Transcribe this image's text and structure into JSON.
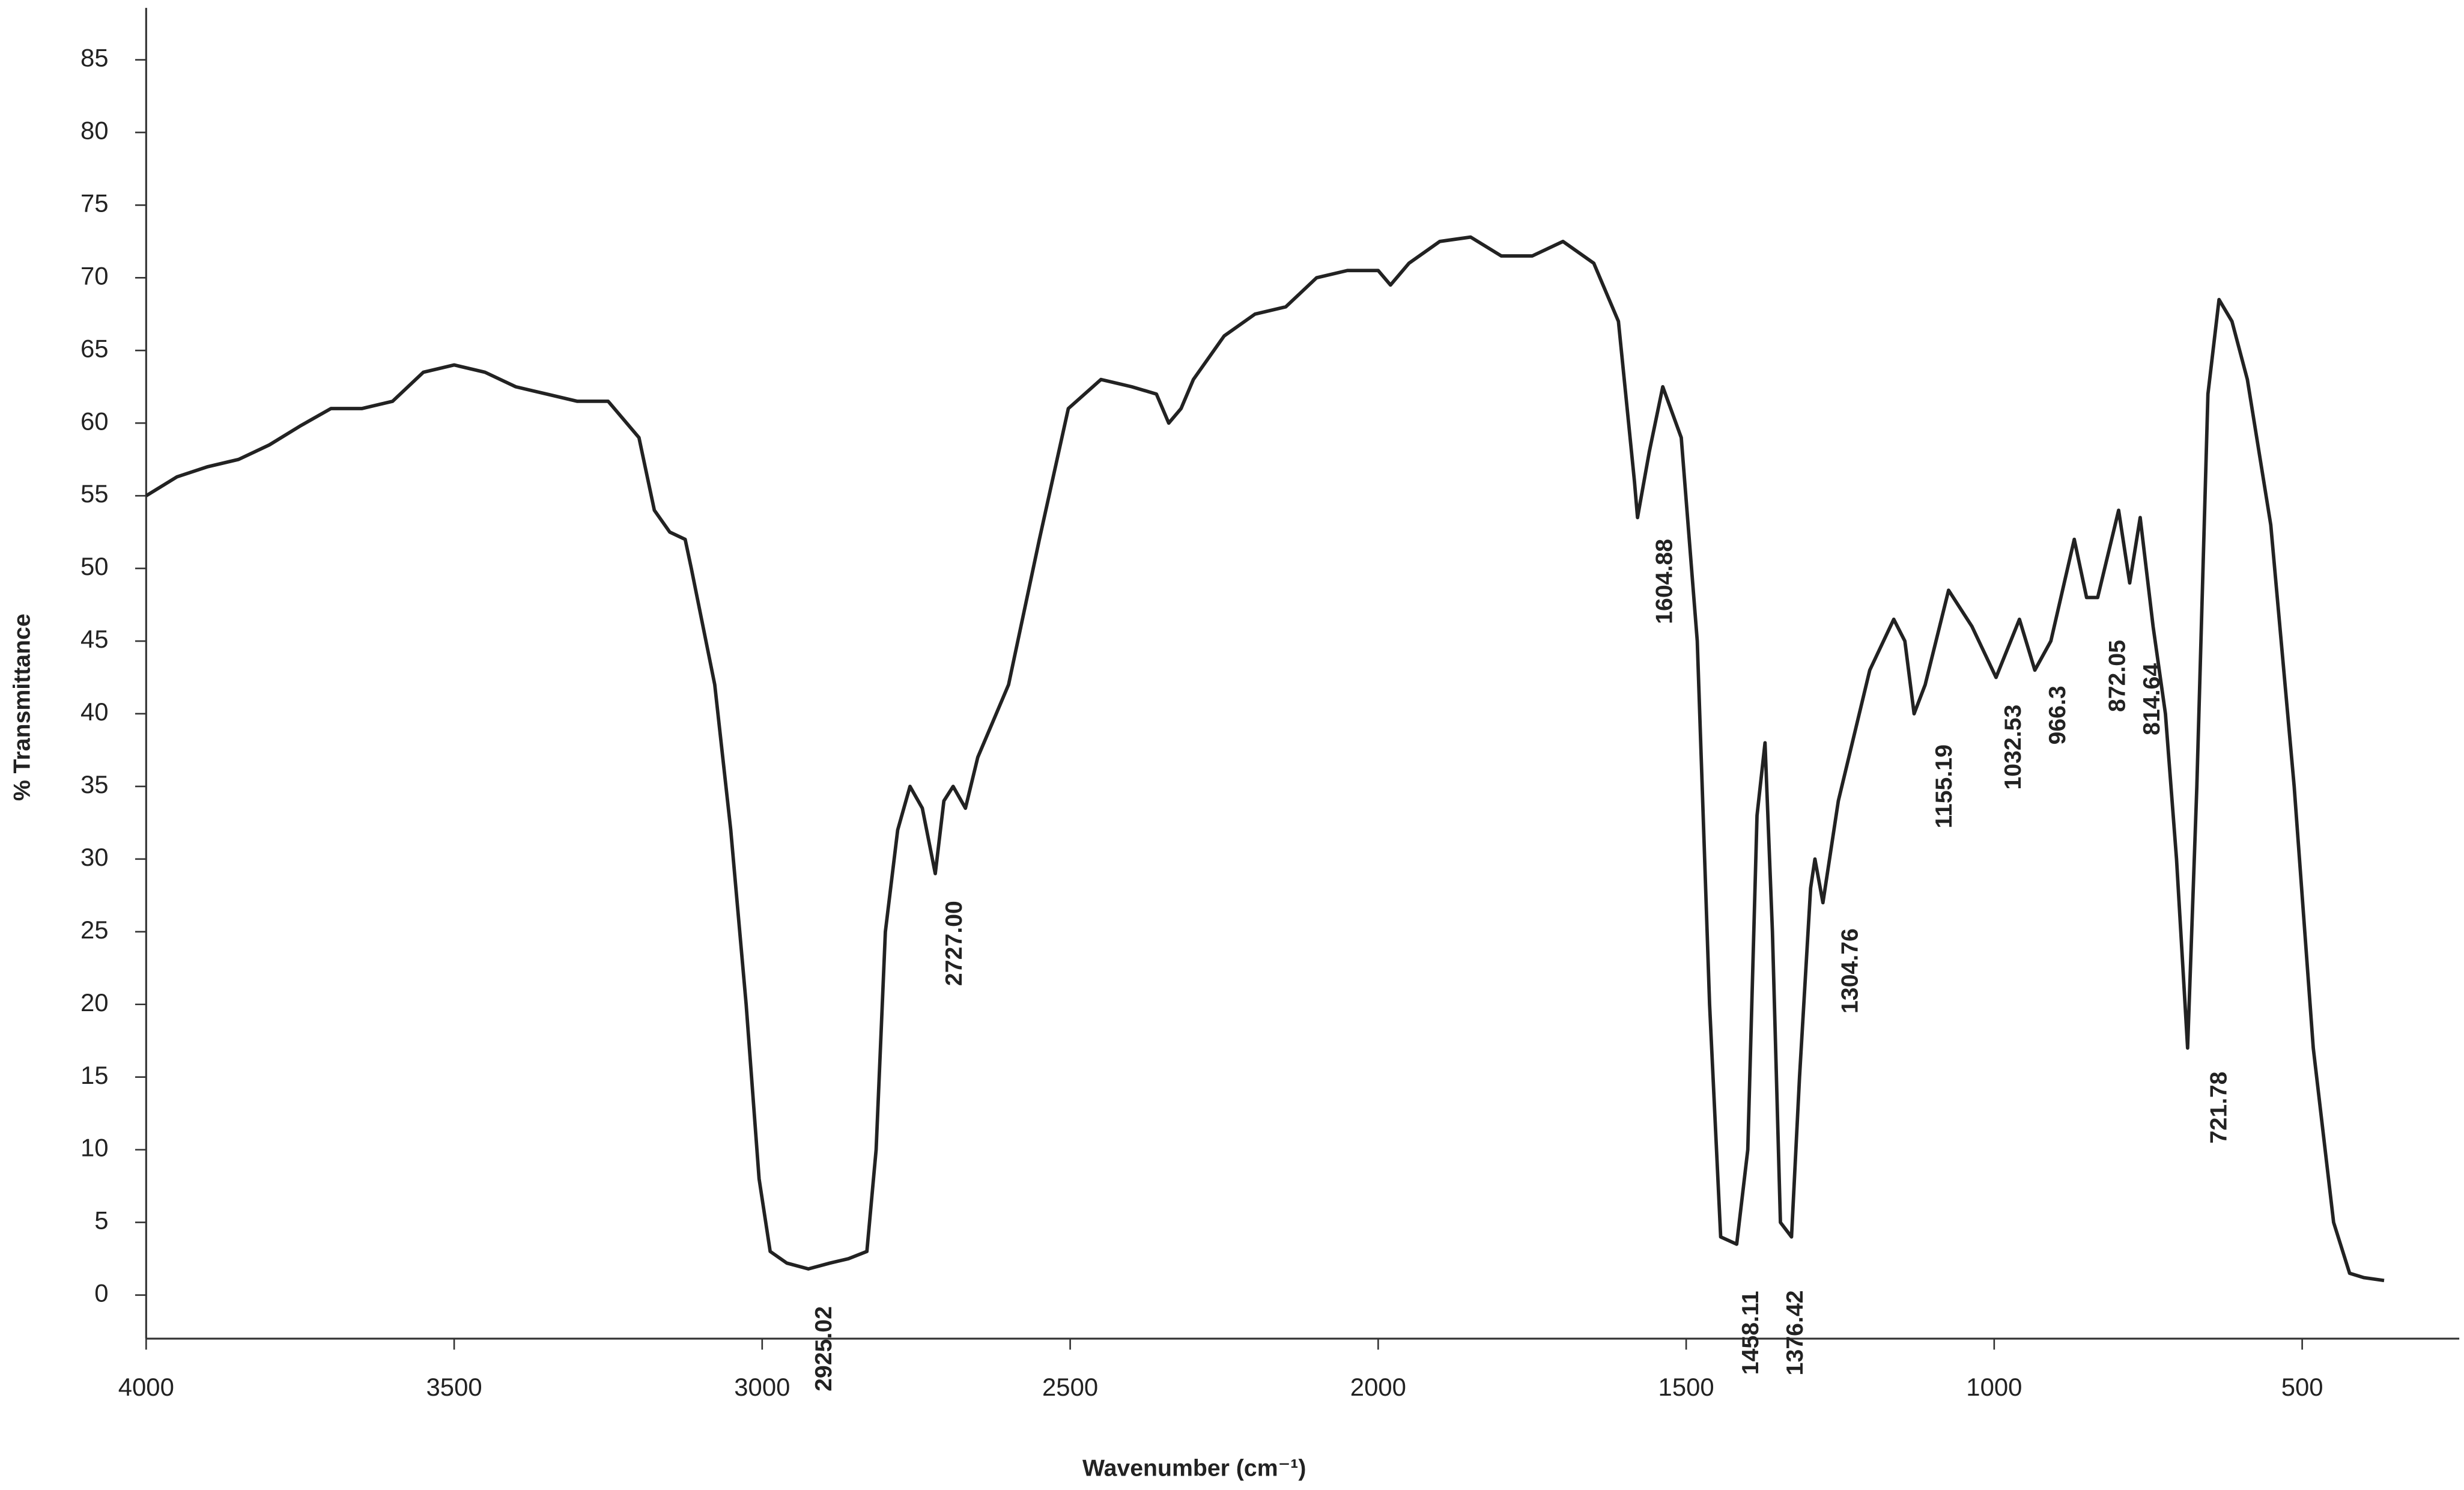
{
  "chart_data": {
    "type": "line",
    "x_label": "Wavenumber (cm⁻¹)",
    "y_label": "% Transmittance",
    "xlim": [
      4000,
      245
    ],
    "ylim": [
      -3,
      88
    ],
    "xticks": [
      4000,
      3500,
      3000,
      2500,
      2000,
      1500,
      1000,
      500
    ],
    "yticks": [
      0,
      5,
      10,
      15,
      20,
      25,
      30,
      35,
      40,
      45,
      50,
      55,
      60,
      65,
      70,
      75,
      80,
      85
    ],
    "grid": false,
    "x": [
      4000,
      3950,
      3900,
      3850,
      3800,
      3750,
      3700,
      3650,
      3600,
      3550,
      3500,
      3450,
      3400,
      3350,
      3300,
      3250,
      3200,
      3175,
      3150,
      3125,
      3115,
      3077,
      3051,
      3026,
      3005,
      2987,
      2960,
      2925,
      2890,
      2860,
      2830,
      2815,
      2800,
      2780,
      2760,
      2740,
      2719,
      2705,
      2690,
      2670,
      2650,
      2600,
      2550,
      2503,
      2450,
      2400,
      2360,
      2340,
      2320,
      2300,
      2250,
      2200,
      2150,
      2100,
      2050,
      2000,
      1980,
      1950,
      1900,
      1850,
      1800,
      1750,
      1700,
      1650,
      1610,
      1584,
      1579,
      1560,
      1538,
      1508,
      1482,
      1462,
      1444,
      1418,
      1400,
      1385,
      1372,
      1360,
      1347,
      1329,
      1316,
      1298,
      1291,
      1278,
      1253,
      1202,
      1163,
      1145,
      1130,
      1112,
      1074,
      1036,
      997,
      959,
      934,
      908,
      870,
      850,
      832,
      798,
      780,
      763,
      742,
      722,
      704,
      686,
      671,
      653,
      635,
      614,
      589,
      551,
      513,
      482,
      449,
      423,
      400,
      367
    ],
    "series": [
      {
        "name": "spectrum",
        "color": "#222222",
        "values": [
          55,
          56.3,
          57,
          57.5,
          58.5,
          59.8,
          61,
          61,
          61.5,
          63.5,
          64,
          63.5,
          62.5,
          62,
          61.5,
          61.5,
          59,
          54,
          52.5,
          52,
          50,
          42,
          32,
          20,
          8,
          3,
          2.2,
          1.8,
          2.2,
          2.5,
          3,
          10,
          25,
          32,
          35,
          33.5,
          29,
          34,
          35,
          33.5,
          37,
          42,
          52,
          61,
          63,
          62.5,
          62,
          60,
          61,
          63,
          66,
          67.5,
          68,
          70,
          70.5,
          70.5,
          69.5,
          71,
          72.5,
          72.8,
          71.5,
          71.5,
          72.5,
          71,
          67,
          56,
          53.5,
          58,
          62.5,
          59,
          45,
          20,
          4,
          3.5,
          10,
          33,
          38,
          25,
          5,
          4,
          15,
          28,
          30,
          27,
          34,
          43,
          46.5,
          45,
          40,
          42,
          48.5,
          46,
          42.5,
          46.5,
          43,
          45,
          52,
          48,
          48,
          54,
          49,
          53.5,
          46,
          40,
          30,
          17,
          35,
          62,
          68.5,
          67,
          63,
          53,
          35,
          17,
          5,
          1.5,
          1.2,
          1
        ]
      }
    ],
    "annotations": [
      {
        "text": "2925.02",
        "x": 2898,
        "y": -3.7
      },
      {
        "text": "2727.00",
        "x": 2686,
        "y": 24.2
      },
      {
        "text": "1604.88",
        "x": 1533,
        "y": 49.1
      },
      {
        "text": "1458.11",
        "x": 1393,
        "y": -2.6
      },
      {
        "text": "1376.42",
        "x": 1321,
        "y": -2.6
      },
      {
        "text": "1304.76",
        "x": 1232,
        "y": 22.3
      },
      {
        "text": "1155.19",
        "x": 1079,
        "y": 35
      },
      {
        "text": "1032.53",
        "x": 967,
        "y": 37.7
      },
      {
        "text": "966.3",
        "x": 895,
        "y": 39.9
      },
      {
        "text": "872.05",
        "x": 798,
        "y": 42.6
      },
      {
        "text": "814.64",
        "x": 742,
        "y": 41
      },
      {
        "text": "721.78",
        "x": 633,
        "y": 12.9
      }
    ]
  }
}
